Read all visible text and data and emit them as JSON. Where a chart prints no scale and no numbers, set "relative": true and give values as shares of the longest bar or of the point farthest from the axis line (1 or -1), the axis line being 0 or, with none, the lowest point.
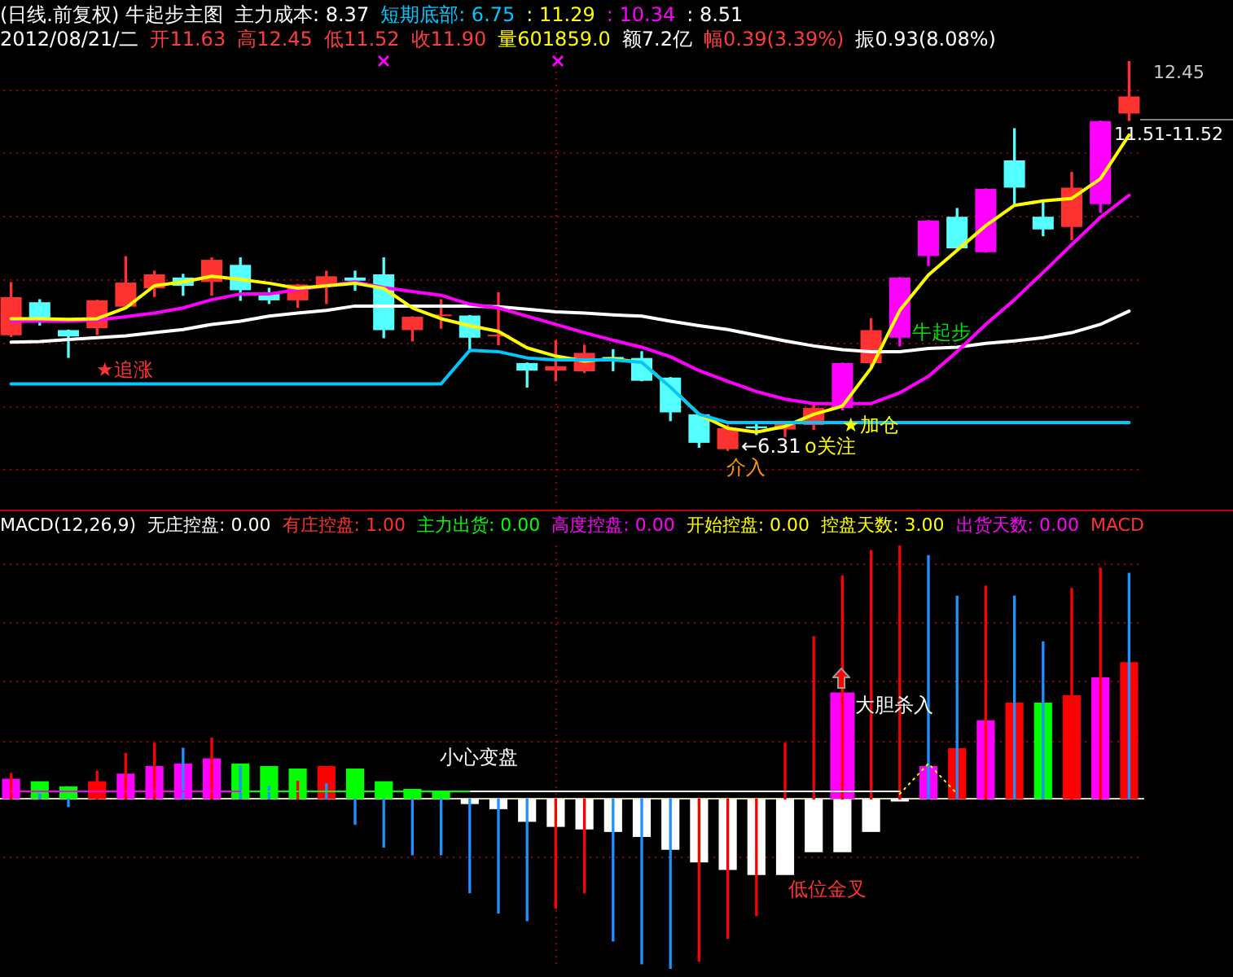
{
  "chart_data": [
    {
      "type": "candlestick",
      "title": "(日线.前复权) 牛起步主图",
      "subtitle": "2012/08/21/二 开11.63 高12.45 低11.52 收11.90 量601859.0 额7.2亿 幅0.39(3.39%) 振0.93(8.08%)",
      "annotations": [
        "主力成本: 8.37",
        "短期底部: 6.75",
        ": 11.29",
        ": 10.34",
        ": 8.51",
        "★追涨",
        "牛起步",
        "★加仓",
        "←6.31",
        "o关注",
        "介入",
        "11.51-11.52",
        "12.45"
      ],
      "categories": [
        null,
        null,
        null,
        null,
        null,
        null,
        null,
        null,
        null,
        null,
        null,
        null,
        null,
        null,
        null,
        null,
        null,
        null,
        null,
        null,
        null,
        null,
        null,
        null,
        null,
        null,
        null,
        null,
        null,
        null,
        null,
        null,
        null,
        null,
        null,
        null,
        null,
        null,
        null,
        null
      ],
      "ohlc": [
        [
          8.13,
          8.96,
          8.11,
          8.73
        ],
        [
          8.65,
          8.69,
          8.29,
          8.34
        ],
        [
          8.21,
          8.21,
          7.78,
          8.11
        ],
        [
          8.24,
          8.68,
          8.14,
          8.68
        ],
        [
          8.58,
          9.37,
          8.58,
          8.96
        ],
        [
          8.87,
          9.14,
          8.74,
          9.09
        ],
        [
          9.04,
          9.09,
          8.76,
          8.91
        ],
        [
          8.97,
          9.35,
          8.76,
          9.32
        ],
        [
          9.24,
          9.35,
          8.68,
          8.84
        ],
        [
          8.78,
          8.87,
          8.63,
          8.68
        ],
        [
          8.68,
          8.93,
          8.57,
          8.93
        ],
        [
          8.91,
          9.14,
          8.63,
          9.06
        ],
        [
          9.04,
          9.14,
          8.84,
          8.99
        ],
        [
          9.09,
          9.35,
          8.09,
          8.21
        ],
        [
          8.21,
          8.42,
          8.04,
          8.42
        ],
        [
          8.43,
          8.69,
          8.24,
          8.43
        ],
        [
          8.44,
          8.44,
          7.87,
          8.09
        ],
        [
          8.11,
          8.8,
          7.98,
          8.11
        ],
        [
          7.69,
          7.69,
          7.31,
          7.57
        ],
        [
          7.57,
          8.04,
          7.41,
          7.64
        ],
        [
          7.56,
          7.97,
          7.54,
          7.85
        ],
        [
          7.78,
          7.9,
          7.57,
          7.76
        ],
        [
          7.77,
          7.87,
          7.41,
          7.41
        ],
        [
          7.46,
          7.46,
          6.78,
          6.91
        ],
        [
          6.88,
          6.88,
          6.36,
          6.43
        ],
        [
          6.33,
          6.71,
          6.31,
          6.66
        ],
        [
          6.69,
          6.74,
          6.56,
          6.66
        ],
        [
          6.64,
          6.75,
          6.53,
          6.75
        ],
        [
          6.71,
          7.05,
          6.64,
          6.98
        ],
        [
          6.98,
          7.69,
          6.95,
          7.69
        ],
        [
          7.69,
          8.39,
          7.63,
          8.21
        ],
        [
          8.09,
          9.04,
          7.96,
          9.04
        ],
        [
          9.38,
          9.94,
          9.23,
          9.94
        ],
        [
          10.0,
          10.13,
          9.5,
          9.5
        ],
        [
          9.44,
          10.44,
          9.44,
          10.44
        ],
        [
          10.89,
          11.39,
          10.2,
          10.46
        ],
        [
          10.0,
          10.25,
          9.7,
          9.8
        ],
        [
          9.84,
          10.7,
          9.64,
          10.46
        ],
        [
          10.2,
          11.51,
          10.07,
          11.51
        ],
        [
          11.63,
          12.45,
          11.52,
          11.9
        ]
      ],
      "colors": [
        "#ff3232",
        "#54ffff",
        "#54ffff",
        "#ff3232",
        "#ff3232",
        "#ff3232",
        "#54ffff",
        "#ff3232",
        "#54ffff",
        "#54ffff",
        "#ff3232",
        "#ff3232",
        "#54ffff",
        "#54ffff",
        "#ff3232",
        "#ff3232",
        "#54ffff",
        "#ff3232",
        "#54ffff",
        "#ff3232",
        "#ff3232",
        "#54ffff",
        "#54ffff",
        "#54ffff",
        "#54ffff",
        "#ff3232",
        "#54ffff",
        "#ff3232",
        "#ff3232",
        "#ff00ff",
        "#ff3232",
        "#ff00ff",
        "#ff00ff",
        "#54ffff",
        "#ff00ff",
        "#54ffff",
        "#54ffff",
        "#ff3232",
        "#ff00ff",
        "#ff3232"
      ],
      "series": [
        {
          "type": "line",
          "color": "#00c8ff",
          "values": [
            7.36,
            7.36,
            7.36,
            7.36,
            7.36,
            7.36,
            7.36,
            7.36,
            7.36,
            7.36,
            7.36,
            7.36,
            7.36,
            7.36,
            7.36,
            7.36,
            7.89,
            7.87,
            7.77,
            7.74,
            7.74,
            7.74,
            7.7,
            7.31,
            6.88,
            6.75,
            6.75,
            6.75,
            6.75,
            6.75,
            6.75,
            6.75,
            6.75,
            6.75,
            6.75,
            6.75,
            6.75,
            6.75,
            6.75,
            6.75
          ]
        },
        {
          "type": "line",
          "color": "#ffff00",
          "values": [
            8.39,
            8.39,
            8.38,
            8.39,
            8.56,
            8.91,
            8.97,
            9.06,
            9.01,
            8.95,
            8.87,
            8.91,
            8.95,
            8.87,
            8.56,
            8.39,
            8.28,
            8.19,
            7.93,
            7.8,
            7.72,
            7.76,
            7.7,
            7.31,
            6.88,
            6.66,
            6.6,
            6.69,
            6.88,
            7.01,
            7.61,
            8.52,
            9.08,
            9.47,
            9.86,
            10.18,
            10.25,
            10.29,
            10.6,
            11.29
          ]
        },
        {
          "type": "line",
          "color": "#ff00ff",
          "values": [
            8.35,
            8.35,
            8.35,
            8.37,
            8.42,
            8.48,
            8.56,
            8.69,
            8.78,
            8.78,
            8.85,
            8.91,
            8.97,
            8.88,
            8.82,
            8.76,
            8.62,
            8.56,
            8.43,
            8.3,
            8.17,
            8.05,
            7.94,
            7.79,
            7.57,
            7.4,
            7.24,
            7.12,
            7.05,
            7.05,
            7.05,
            7.22,
            7.48,
            7.87,
            8.3,
            8.69,
            9.12,
            9.56,
            9.99,
            10.34
          ]
        },
        {
          "type": "line",
          "color": "#ffffff",
          "values": [
            8.02,
            8.03,
            8.06,
            8.09,
            8.12,
            8.17,
            8.22,
            8.3,
            8.35,
            8.43,
            8.48,
            8.52,
            8.59,
            8.59,
            8.59,
            8.59,
            8.59,
            8.58,
            8.54,
            8.5,
            8.48,
            8.45,
            8.43,
            8.35,
            8.28,
            8.22,
            8.13,
            8.04,
            7.96,
            7.9,
            7.87,
            7.87,
            7.92,
            7.94,
            8.0,
            8.04,
            8.09,
            8.17,
            8.3,
            8.51
          ]
        }
      ],
      "ylim": [
        5.4,
        12.6
      ],
      "yticks": [
        {
          "value": 6,
          "label": null
        },
        {
          "value": 7,
          "label": null
        },
        {
          "value": 8,
          "label": null
        },
        {
          "value": 9,
          "label": null
        },
        {
          "value": 10,
          "label": null
        },
        {
          "value": 11,
          "label": null
        },
        {
          "value": 12,
          "label": null
        }
      ],
      "grid": "y",
      "tick_labels": false,
      "marker": "none"
    },
    {
      "type": "bar",
      "title": "MACD(12,26,9)",
      "annotations": [
        "无庄控盘: 0.00",
        "有庄控盘: 1.00",
        "主力出货: 0.00",
        "高度控盘: 0.00",
        "开始控盘: 0.00",
        "控盘天数: 3.00",
        "出货天数: 0.00",
        "MACD",
        "小心变盘",
        "大胆杀入",
        "低位金叉"
      ],
      "categories": [
        null,
        null,
        null,
        null,
        null,
        null,
        null,
        null,
        null,
        null,
        null,
        null,
        null,
        null,
        null,
        null,
        null,
        null,
        null,
        null,
        null,
        null,
        null,
        null,
        null,
        null,
        null,
        null,
        null,
        null,
        null,
        null,
        null,
        null,
        null,
        null,
        null,
        null,
        null,
        null
      ],
      "relative": true,
      "series": [
        {
          "type": "bar",
          "values": [
            0.08,
            0.07,
            0.05,
            null,
            0.1,
            0.13,
            0.14,
            0.16,
            0.14,
            0.13,
            0.12,
            null,
            0.12,
            0.07,
            0.04,
            0.03,
            -0.02,
            -0.04,
            -0.09,
            -0.11,
            -0.12,
            -0.13,
            -0.15,
            -0.2,
            -0.25,
            -0.28,
            -0.3,
            -0.3,
            -0.21,
            -0.21,
            -0.13,
            -0.01,
            0.13,
            null,
            0.31,
            null,
            0.38,
            null,
            0.48,
            null
          ],
          "colors": [
            "#ff00ff",
            "#00ff00",
            "#00ff00",
            null,
            "#ff00ff",
            "#ff00ff",
            "#ff00ff",
            "#ff00ff",
            "#00ff00",
            "#00ff00",
            "#00ff00",
            null,
            "#00ff00",
            "#00ff00",
            "#00ff00",
            "#00ff00",
            "#ffffff",
            "#ffffff",
            "#ffffff",
            "#ffffff",
            "#ffffff",
            "#ffffff",
            "#ffffff",
            "#ffffff",
            "#ffffff",
            "#ffffff",
            "#ffffff",
            "#ffffff",
            "#ffffff",
            "#ffffff",
            "#ffffff",
            "#ffffff",
            "#ff00ff",
            null,
            "#ff00ff",
            null,
            "#00ff00",
            null,
            "#ff00ff",
            null
          ]
        },
        {
          "type": "bar",
          "color": "#ff0000",
          "values": [
            null,
            null,
            null,
            0.07,
            null,
            null,
            null,
            null,
            null,
            null,
            null,
            0.13,
            null,
            null,
            null,
            null,
            null,
            null,
            null,
            null,
            null,
            null,
            null,
            null,
            null,
            null,
            null,
            null,
            null,
            null,
            null,
            null,
            null,
            0.2,
            null,
            0.38,
            null,
            0.41,
            null,
            0.54
          ]
        },
        {
          "type": "bar",
          "color": "#ff00ff",
          "values": [
            null,
            null,
            null,
            null,
            null,
            null,
            null,
            null,
            null,
            null,
            null,
            null,
            null,
            null,
            null,
            null,
            null,
            null,
            null,
            null,
            null,
            null,
            null,
            null,
            null,
            null,
            null,
            null,
            null,
            0.42,
            null,
            null,
            null,
            null,
            null,
            null,
            null,
            null,
            null,
            null
          ]
        },
        {
          "type": "bar",
          "values": [
            0.1,
            0.02,
            -0.03,
            0.11,
            0.18,
            0.22,
            0.2,
            0.24,
            0.13,
            0.05,
            0.07,
            0.06,
            -0.1,
            -0.19,
            -0.22,
            -0.22,
            -0.37,
            -0.45,
            -0.48,
            -0.43,
            -0.37,
            -0.56,
            -0.65,
            -0.67,
            -0.64,
            -0.55,
            -0.46,
            0.22,
            0.64,
            0.88,
            0.98,
            1,
            0.96,
            0.8,
            0.84,
            0.8,
            0.62,
            0.83,
            0.91,
            0.89
          ],
          "colors": [
            "#ff0000",
            "#1e90ff",
            "#1e90ff",
            "#ff0000",
            "#ff0000",
            "#ff0000",
            "#1e90ff",
            "#ff0000",
            "#1e90ff",
            "#1e90ff",
            "#ff0000",
            "#1e90ff",
            "#1e90ff",
            "#1e90ff",
            "#1e90ff",
            "#1e90ff",
            "#1e90ff",
            "#1e90ff",
            "#1e90ff",
            "#ff0000",
            "#ff0000",
            "#1e90ff",
            "#1e90ff",
            "#1e90ff",
            "#ff0000",
            "#ff0000",
            "#ff0000",
            "#ff0000",
            "#ff0000",
            "#ff0000",
            "#ff0000",
            "#ff0000",
            "#1e90ff",
            "#1e90ff",
            "#ff0000",
            "#1e90ff",
            "#1e90ff",
            "#ff0000",
            "#ff0000",
            "#1e90ff"
          ]
        },
        {
          "type": "line",
          "color": "#ff00ff",
          "values": [
            0.03,
            0.03,
            0.03,
            0.03,
            0.03,
            0.03,
            0.03,
            0.03,
            0.03,
            null,
            null,
            null,
            null,
            null,
            null,
            null,
            null,
            null,
            null,
            null,
            null,
            null,
            null,
            null,
            null,
            null,
            null,
            null,
            null,
            null,
            null,
            null,
            null,
            null,
            null,
            null,
            null,
            null,
            null,
            null
          ]
        },
        {
          "type": "line",
          "color": "#00ff00",
          "values": [
            null,
            null,
            null,
            null,
            null,
            null,
            null,
            null,
            0.03,
            0.03,
            0.03,
            0.03,
            0.03,
            0.03,
            0.03,
            0.03,
            0.03,
            null,
            null,
            null,
            null,
            null,
            null,
            null,
            null,
            null,
            null,
            null,
            null,
            null,
            null,
            null,
            null,
            null,
            null,
            null,
            null,
            null,
            null,
            null
          ]
        },
        {
          "type": "line",
          "color": "#ffffff",
          "values": [
            null,
            null,
            null,
            null,
            null,
            null,
            null,
            null,
            null,
            null,
            null,
            null,
            null,
            null,
            null,
            null,
            0.03,
            0.03,
            0.03,
            0.03,
            0.03,
            0.03,
            0.03,
            0.03,
            0.03,
            0.03,
            0.03,
            0.03,
            0.03,
            0.03,
            0.03,
            0.03,
            null,
            null,
            null,
            null,
            null,
            null,
            null,
            null
          ]
        },
        {
          "type": "line",
          "color": "#ffff00",
          "line_style": "dotted",
          "values": [
            null,
            null,
            null,
            null,
            null,
            null,
            null,
            null,
            null,
            null,
            null,
            null,
            null,
            null,
            null,
            null,
            null,
            null,
            null,
            null,
            null,
            null,
            null,
            null,
            null,
            null,
            null,
            null,
            null,
            null,
            null,
            0.02,
            0.14,
            0.02,
            null,
            null,
            null,
            null,
            null,
            null
          ]
        }
      ],
      "ref_lines": [
        {
          "axis": "y",
          "value": 0.93,
          "color": "#a00000",
          "line_style": "dotted"
        },
        {
          "axis": "y",
          "value": 0.7,
          "color": "#a00000",
          "line_style": "dotted"
        },
        {
          "axis": "y",
          "value": 0.47,
          "color": "#a00000",
          "line_style": "dotted"
        },
        {
          "axis": "y",
          "value": 0.23,
          "color": "#a00000",
          "line_style": "dotted"
        },
        {
          "axis": "y",
          "value": -0.23,
          "color": "#a00000",
          "line_style": "dotted"
        }
      ],
      "tick_labels": false,
      "marker": "none"
    }
  ]
}
